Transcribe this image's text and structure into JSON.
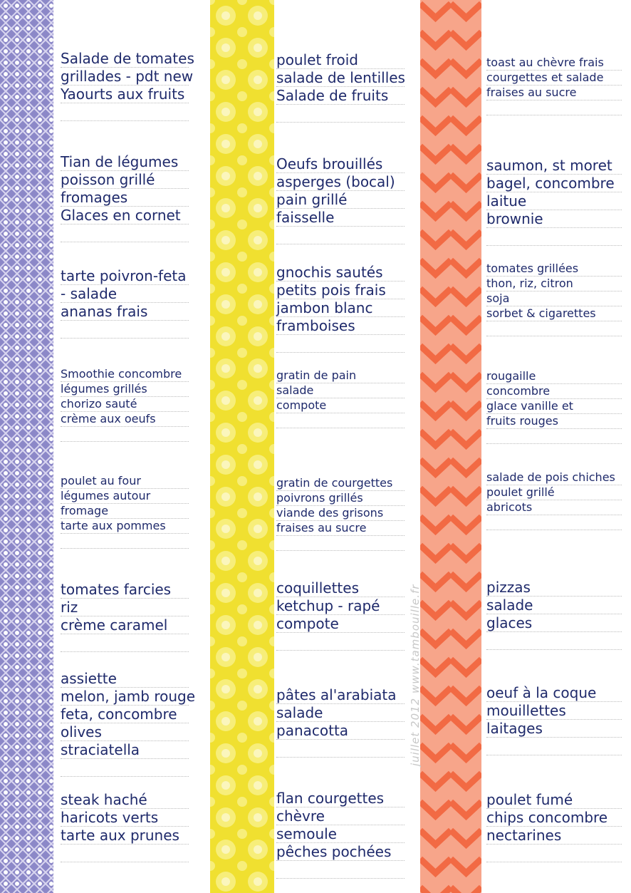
{
  "columns": [
    {
      "menus": [
        [
          "Salade de tomates",
          "grillades - pdt new",
          "Yaourts aux fruits"
        ],
        [
          "Tian de légumes",
          "poisson grillé",
          "fromages",
          "Glaces en cornet"
        ],
        [
          "tarte poivron-feta",
          "- salade",
          "ananas frais"
        ],
        [
          "Smoothie concombre",
          "légumes grillés",
          "chorizo sauté",
          "crème aux oeufs"
        ],
        [
          "poulet au four",
          "légumes autour",
          "fromage",
          "tarte aux pommes"
        ],
        [
          "tomates farcies",
          "riz",
          "crème caramel"
        ],
        [
          "assiette",
          "melon, jamb rouge",
          "feta, concombre",
          "olives",
          "straciatella"
        ],
        [
          "steak haché",
          "haricots verts",
          "tarte aux prunes"
        ]
      ]
    },
    {
      "menus": [
        [
          "poulet froid",
          "salade de lentilles",
          "Salade de fruits"
        ],
        [
          "Oeufs brouillés",
          "asperges (bocal)",
          "pain grillé",
          "faisselle"
        ],
        [
          "gnochis sautés",
          "petits pois frais",
          "jambon blanc",
          "framboises"
        ],
        [
          "gratin de pain",
          "salade",
          "compote"
        ],
        [
          "gratin de courgettes",
          "poivrons grillés",
          "viande des grisons",
          "fraises au sucre"
        ],
        [
          "coquillettes",
          "ketchup - rapé",
          "compote"
        ],
        [
          "pâtes al'arabiata",
          "salade",
          "panacotta"
        ],
        [
          "flan courgettes",
          "chèvre",
          "semoule",
          "pêches pochées"
        ]
      ]
    },
    {
      "menus": [
        [
          "toast au chèvre frais",
          "courgettes et salade",
          "fraises au sucre"
        ],
        [
          "saumon, st moret",
          "bagel, concombre",
          "laitue",
          "brownie"
        ],
        [
          "tomates grillées",
          "thon, riz, citron",
          "soja",
          "sorbet & cigarettes"
        ],
        [
          "rougaille",
          "concombre",
          "glace vanille et",
          "fruits rouges"
        ],
        [
          "salade de pois chiches",
          "poulet grillé",
          "abricots"
        ],
        [
          "pizzas",
          "salade",
          "glaces"
        ],
        [
          "oeuf à la coque",
          "mouillettes",
          "laitages"
        ],
        [
          "poulet fumé",
          "chips concombre",
          "nectarines"
        ]
      ]
    }
  ],
  "footer": "juillet 2012 www.tambouille.fr"
}
